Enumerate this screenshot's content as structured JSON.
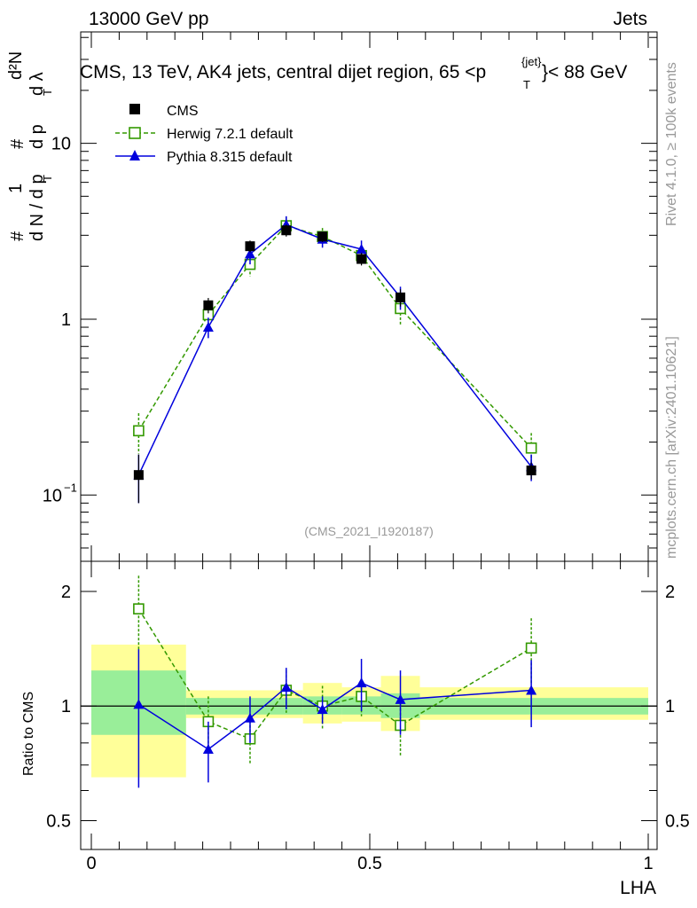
{
  "header": {
    "left": "13000 GeV pp",
    "right": "Jets"
  },
  "plot_title": "CMS, 13 TeV, AK4 jets, central dijet region, 65 <p",
  "plot_title_sub": "T",
  "plot_title_sup": "{jet}",
  "plot_title_end": "}< 88 GeV",
  "watermark": "(CMS_2021_I1920187)",
  "side_top": "Rivet 4.1.0, ≥ 100k events",
  "side_bottom": "mcplots.cern.ch [arXiv:2401.10621]",
  "ylabel_top": "1/N dN/dp_T dλ",
  "ylabel_bottom": "Ratio to CMS",
  "xlabel": "LHA",
  "legend": [
    "CMS",
    "Herwig 7.2.1 default",
    "Pythia 8.315 default"
  ],
  "colors": {
    "data": "#000000",
    "herwig": "#339900",
    "pythia": "#0000dd",
    "band_inner": "#99ee99",
    "band_outer": "#ffff99"
  },
  "chart_data": [
    {
      "type": "scatter",
      "title": "CMS, 13 TeV, AK4 jets, central dijet region, 65 < pT < 88 GeV",
      "xlabel": "LHA",
      "ylabel": "1/N dN/dpT dλ",
      "yscale": "log",
      "xlim": [
        0,
        1
      ],
      "ylim": [
        0.04,
        45
      ],
      "yticks": [
        {
          "v": 0.1,
          "label": "10^-1"
        },
        {
          "v": 1,
          "label": "1"
        },
        {
          "v": 10,
          "label": "10"
        }
      ],
      "series": [
        {
          "name": "CMS",
          "x": [
            0.085,
            0.21,
            0.285,
            0.35,
            0.415,
            0.485,
            0.555,
            0.79
          ],
          "y": [
            0.13,
            1.2,
            2.6,
            3.2,
            2.95,
            2.2,
            1.33,
            0.138
          ],
          "err": [
            0.04,
            0.12,
            0.2,
            0.25,
            0.2,
            0.18,
            0.15,
            0.015
          ],
          "xerr": [
            0.085,
            0.04,
            0.035,
            0.03,
            0.035,
            0.035,
            0.035,
            0.2
          ]
        },
        {
          "name": "Herwig 7.2.1 default",
          "x": [
            0.085,
            0.21,
            0.285,
            0.35,
            0.415,
            0.485,
            0.555,
            0.79
          ],
          "y": [
            0.232,
            1.06,
            2.05,
            3.4,
            2.95,
            2.3,
            1.15,
            0.185
          ],
          "err": [
            0.06,
            0.15,
            0.3,
            0.4,
            0.35,
            0.25,
            0.22,
            0.04
          ]
        },
        {
          "name": "Pythia 8.315 default",
          "x": [
            0.085,
            0.21,
            0.285,
            0.35,
            0.415,
            0.485,
            0.555,
            0.79
          ],
          "y": [
            0.13,
            0.9,
            2.35,
            3.45,
            2.85,
            2.5,
            1.33,
            0.145
          ],
          "err": [
            0.04,
            0.12,
            0.3,
            0.4,
            0.3,
            0.3,
            0.2,
            0.025
          ]
        }
      ]
    },
    {
      "type": "scatter",
      "ylabel": "Ratio to CMS",
      "xlabel": "LHA",
      "yscale": "log",
      "xlim": [
        0,
        1
      ],
      "ylim": [
        0.42,
        2.4
      ],
      "yticks": [
        {
          "v": 0.5,
          "label": "0.5"
        },
        {
          "v": 1,
          "label": "1"
        },
        {
          "v": 2,
          "label": "2"
        }
      ],
      "xticks": [
        {
          "v": 0,
          "label": "0"
        },
        {
          "v": 0.5,
          "label": "0.5"
        },
        {
          "v": 1,
          "label": "1"
        }
      ],
      "bands": [
        {
          "x0": 0.0,
          "x1": 0.17,
          "inner": [
            0.84,
            1.24
          ],
          "outer": [
            0.65,
            1.45
          ]
        },
        {
          "x0": 0.17,
          "x1": 0.38,
          "inner": [
            0.95,
            1.05
          ],
          "outer": [
            0.93,
            1.1
          ]
        },
        {
          "x0": 0.38,
          "x1": 0.45,
          "inner": [
            0.95,
            1.06
          ],
          "outer": [
            0.9,
            1.15
          ]
        },
        {
          "x0": 0.45,
          "x1": 0.52,
          "inner": [
            0.95,
            1.06
          ],
          "outer": [
            0.91,
            1.12
          ]
        },
        {
          "x0": 0.52,
          "x1": 0.59,
          "inner": [
            0.93,
            1.08
          ],
          "outer": [
            0.86,
            1.2
          ]
        },
        {
          "x0": 0.59,
          "x1": 1.0,
          "inner": [
            0.95,
            1.05
          ],
          "outer": [
            0.92,
            1.12
          ]
        }
      ],
      "series": [
        {
          "name": "Herwig 7.2.1 default",
          "x": [
            0.085,
            0.21,
            0.285,
            0.35,
            0.415,
            0.485,
            0.555,
            0.79
          ],
          "y": [
            1.8,
            0.91,
            0.82,
            1.1,
            1.0,
            1.06,
            0.89,
            1.42
          ],
          "err": [
            0.4,
            0.15,
            0.12,
            0.14,
            0.13,
            0.12,
            0.15,
            0.28
          ]
        },
        {
          "name": "Pythia 8.315 default",
          "x": [
            0.085,
            0.21,
            0.285,
            0.35,
            0.415,
            0.485,
            0.555,
            0.79
          ],
          "y": [
            1.01,
            0.77,
            0.93,
            1.12,
            0.98,
            1.15,
            1.04,
            1.1
          ],
          "err": [
            0.4,
            0.14,
            0.13,
            0.14,
            0.08,
            0.18,
            0.2,
            0.22
          ]
        }
      ]
    }
  ]
}
